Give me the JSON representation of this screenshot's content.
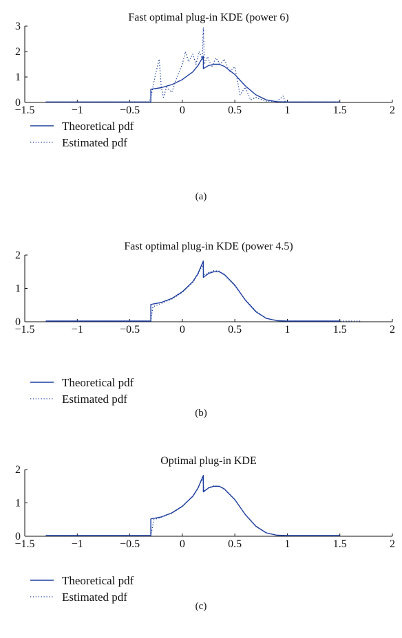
{
  "figure": {
    "line_color": "#1f3f9f",
    "panels": [
      {
        "caption": "(a)",
        "legend": {
          "theoretical": "Theoretical pdf",
          "estimated": "Estimated pdf"
        }
      },
      {
        "caption": "(b)",
        "legend": {
          "theoretical": "Theoretical pdf",
          "estimated": "Estimated pdf"
        }
      },
      {
        "caption": "(c)",
        "legend": {
          "theoretical": "Theoretical pdf",
          "estimated": "Estimated pdf"
        }
      }
    ]
  },
  "chart_data": [
    {
      "type": "line",
      "title": "Fast optimal plug-in KDE (power 6)",
      "xlim": [
        -1.5,
        2
      ],
      "ylim": [
        0,
        3
      ],
      "xticks": [
        -1.5,
        -1,
        -0.5,
        0,
        0.5,
        1,
        1.5,
        2
      ],
      "xtick_labels": [
        "−1.5",
        "−1",
        "−0.5",
        "0",
        "0.5",
        "1",
        "1.5",
        "2"
      ],
      "yticks": [
        0,
        1,
        2,
        3
      ],
      "ytick_labels": [
        "0",
        "1",
        "2",
        "3"
      ],
      "grid": false,
      "legend_position": "below-left",
      "series": [
        {
          "name": "Theoretical pdf",
          "style": "solid",
          "x": [
            -1.3,
            -0.3,
            -0.3,
            -0.2,
            -0.1,
            0,
            0.1,
            0.15,
            0.2,
            0.2,
            0.25,
            0.3,
            0.35,
            0.4,
            0.5,
            0.6,
            0.7,
            0.8,
            0.9,
            1.0,
            1.5
          ],
          "y": [
            0.02,
            0.02,
            0.52,
            0.58,
            0.7,
            0.9,
            1.2,
            1.45,
            1.82,
            1.33,
            1.45,
            1.5,
            1.5,
            1.42,
            1.1,
            0.65,
            0.3,
            0.1,
            0.03,
            0.02,
            0.02
          ]
        },
        {
          "name": "Estimated pdf",
          "style": "dotted",
          "x": [
            -1.3,
            -0.32,
            -0.3,
            -0.28,
            -0.25,
            -0.22,
            -0.2,
            -0.18,
            -0.15,
            -0.1,
            -0.05,
            0,
            0.03,
            0.06,
            0.1,
            0.13,
            0.16,
            0.19,
            0.2,
            0.21,
            0.24,
            0.28,
            0.32,
            0.36,
            0.4,
            0.45,
            0.5,
            0.55,
            0.6,
            0.65,
            0.7,
            0.8,
            0.9,
            0.96,
            0.98,
            1.0,
            1.2,
            1.5
          ],
          "y": [
            0.02,
            0.02,
            0.2,
            0.6,
            1.2,
            1.7,
            0.6,
            0.2,
            0.6,
            0.4,
            1.0,
            1.5,
            2.0,
            1.6,
            1.9,
            1.5,
            2.0,
            1.7,
            2.95,
            1.5,
            1.8,
            1.4,
            1.75,
            1.5,
            1.7,
            1.2,
            1.4,
            0.3,
            0.6,
            0.1,
            0.2,
            0.05,
            0.05,
            0.25,
            0.02,
            0.02,
            0.02,
            0.02
          ]
        }
      ]
    },
    {
      "type": "line",
      "title": "Fast optimal plug-in KDE (power 4.5)",
      "xlim": [
        -1.5,
        2
      ],
      "ylim": [
        0,
        2
      ],
      "xticks": [
        -1.5,
        -1,
        -0.5,
        0,
        0.5,
        1,
        1.5,
        2
      ],
      "xtick_labels": [
        "−1.5",
        "−1",
        "−0.5",
        "0",
        "0.5",
        "1",
        "1.5",
        "2"
      ],
      "yticks": [
        0,
        1,
        2
      ],
      "ytick_labels": [
        "0",
        "1",
        "2"
      ],
      "grid": false,
      "legend_position": "below-left",
      "series": [
        {
          "name": "Theoretical pdf",
          "style": "solid",
          "x": [
            -1.3,
            -0.3,
            -0.3,
            -0.2,
            -0.1,
            0,
            0.1,
            0.15,
            0.2,
            0.2,
            0.25,
            0.3,
            0.35,
            0.4,
            0.5,
            0.6,
            0.7,
            0.8,
            0.9,
            1.0,
            1.5
          ],
          "y": [
            0.02,
            0.02,
            0.52,
            0.58,
            0.7,
            0.9,
            1.2,
            1.45,
            1.82,
            1.33,
            1.45,
            1.5,
            1.5,
            1.42,
            1.1,
            0.65,
            0.3,
            0.1,
            0.03,
            0.02,
            0.02
          ]
        },
        {
          "name": "Estimated pdf",
          "style": "dotted",
          "x": [
            -1.3,
            -0.3,
            -0.28,
            -0.2,
            -0.1,
            0,
            0.1,
            0.15,
            0.19,
            0.21,
            0.25,
            0.3,
            0.35,
            0.4,
            0.5,
            0.6,
            0.7,
            0.8,
            0.9,
            1.0,
            1.5,
            1.7
          ],
          "y": [
            0.02,
            0.02,
            0.45,
            0.55,
            0.68,
            0.88,
            1.18,
            1.42,
            1.7,
            1.4,
            1.48,
            1.53,
            1.52,
            1.4,
            1.08,
            0.66,
            0.32,
            0.1,
            0.04,
            0.02,
            0.02,
            0.02
          ]
        }
      ]
    },
    {
      "type": "line",
      "title": "Optimal plug-in KDE",
      "xlim": [
        -1.5,
        2
      ],
      "ylim": [
        0,
        2
      ],
      "xticks": [
        -1.5,
        -1,
        -0.5,
        0,
        0.5,
        1,
        1.5,
        2
      ],
      "xtick_labels": [
        "−1.5",
        "−1",
        "−0.5",
        "0",
        "0.5",
        "1",
        "1.5",
        "2"
      ],
      "yticks": [
        0,
        1,
        2
      ],
      "ytick_labels": [
        "0",
        "1",
        "2"
      ],
      "grid": false,
      "legend_position": "below-left",
      "series": [
        {
          "name": "Theoretical pdf",
          "style": "solid",
          "x": [
            -1.3,
            -0.3,
            -0.3,
            -0.2,
            -0.1,
            0,
            0.1,
            0.15,
            0.2,
            0.2,
            0.25,
            0.3,
            0.35,
            0.4,
            0.5,
            0.6,
            0.7,
            0.8,
            0.9,
            1.0,
            1.5
          ],
          "y": [
            0.02,
            0.02,
            0.52,
            0.58,
            0.7,
            0.9,
            1.2,
            1.45,
            1.82,
            1.33,
            1.45,
            1.5,
            1.5,
            1.42,
            1.1,
            0.65,
            0.3,
            0.1,
            0.03,
            0.02,
            0.02
          ]
        },
        {
          "name": "Estimated pdf",
          "style": "dotted",
          "x": [
            -1.3,
            -0.3,
            -0.27,
            -0.2,
            -0.1,
            0,
            0.1,
            0.15,
            0.19,
            0.21,
            0.25,
            0.3,
            0.35,
            0.4,
            0.5,
            0.6,
            0.7,
            0.8,
            0.9,
            1.0,
            1.5
          ],
          "y": [
            0.02,
            0.02,
            0.5,
            0.57,
            0.69,
            0.89,
            1.19,
            1.44,
            1.76,
            1.36,
            1.46,
            1.51,
            1.5,
            1.41,
            1.09,
            0.65,
            0.31,
            0.1,
            0.03,
            0.02,
            0.02
          ]
        }
      ]
    }
  ]
}
